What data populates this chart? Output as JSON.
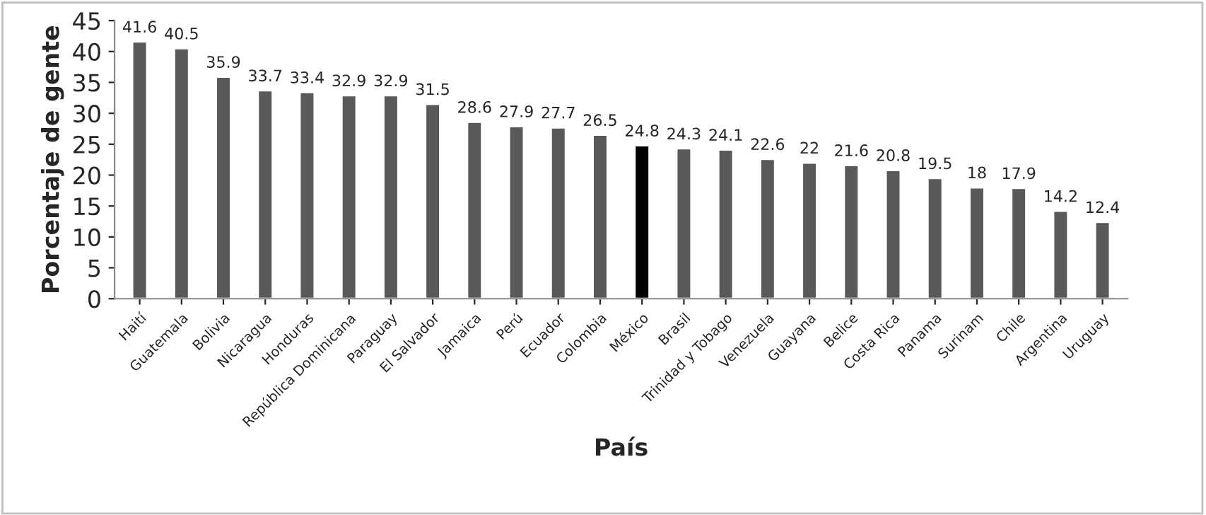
{
  "chart_data": {
    "type": "bar",
    "xlabel": "País",
    "ylabel": "Porcentaje de gente",
    "categories": [
      "Haití",
      "Guatemala",
      "Bolivia",
      "Nicaragua",
      "Honduras",
      "República Dominicana",
      "Paraguay",
      "El Salvador",
      "Jamaica",
      "Perú",
      "Ecuador",
      "Colombia",
      "México",
      "Brasil",
      "Trinidad y Tobago",
      "Venezuela",
      "Guayana",
      "Belice",
      "Costa Rica",
      "Panama",
      "Surinam",
      "Chile",
      "Argentina",
      "Uruguay"
    ],
    "values": [
      41.6,
      40.5,
      35.9,
      33.7,
      33.4,
      32.9,
      32.9,
      31.5,
      28.6,
      27.9,
      27.7,
      26.5,
      24.8,
      24.3,
      24.1,
      22.6,
      22,
      21.6,
      20.8,
      19.5,
      18,
      17.9,
      14.2,
      12.4
    ],
    "colors": [
      "#595959",
      "#595959",
      "#595959",
      "#595959",
      "#595959",
      "#595959",
      "#595959",
      "#595959",
      "#595959",
      "#595959",
      "#595959",
      "#595959",
      "#000000",
      "#595959",
      "#595959",
      "#595959",
      "#595959",
      "#595959",
      "#595959",
      "#595959",
      "#595959",
      "#595959",
      "#595959",
      "#595959"
    ],
    "ylim": [
      0,
      45
    ],
    "yticks": [
      0,
      5,
      10,
      15,
      20,
      25,
      30,
      35,
      40,
      45
    ],
    "grid": false,
    "data_labels": true
  }
}
